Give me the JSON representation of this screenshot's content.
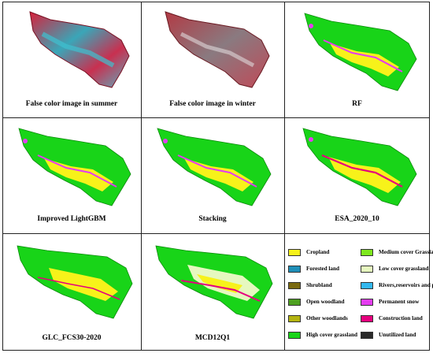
{
  "panels": [
    {
      "caption": "False color image in summer"
    },
    {
      "caption": "False color image in winter"
    },
    {
      "caption": "RF"
    },
    {
      "caption": "Improved LightGBM"
    },
    {
      "caption": "Stacking"
    },
    {
      "caption": "ESA_2020_10"
    },
    {
      "caption": "GLC_FCS30-2020"
    },
    {
      "caption": "MCD12Q1"
    }
  ],
  "legend": {
    "items": [
      {
        "label": "Cropland",
        "color": "#f7f21a"
      },
      {
        "label": "Medium cover Grassland",
        "color": "#7ee81e"
      },
      {
        "label": "Forested land",
        "color": "#1f8fb8"
      },
      {
        "label": "Low cover grassland",
        "color": "#e6f8bf"
      },
      {
        "label": "Shrubland",
        "color": "#7a6a10"
      },
      {
        "label": "Rivers,reservoirs and ponds",
        "color": "#33b8f0"
      },
      {
        "label": "Open woodland",
        "color": "#4da020"
      },
      {
        "label": "Permanent snow",
        "color": "#e43cf0"
      },
      {
        "label": "Other woodlands",
        "color": "#b4b410"
      },
      {
        "label": "Construction land",
        "color": "#e6007e"
      },
      {
        "label": "High cover grassland",
        "color": "#18d418"
      },
      {
        "label": "Unutilized land",
        "color": "#2a2a2a"
      }
    ]
  }
}
